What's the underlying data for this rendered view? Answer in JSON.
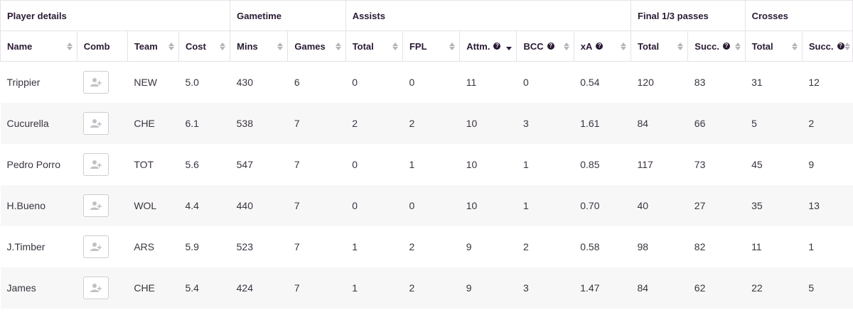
{
  "groups": {
    "player_details": "Player details",
    "gametime": "Gametime",
    "assists": "Assists",
    "final_third": "Final 1/3 passes",
    "crosses": "Crosses"
  },
  "columns": {
    "name": "Name",
    "comb": "Comb",
    "team": "Team",
    "cost": "Cost",
    "mins": "Mins",
    "games": "Games",
    "total": "Total",
    "fpl": "FPL",
    "attm": "Attm.",
    "bcc": "BCC",
    "xa": "xA",
    "f_total": "Total",
    "f_succ": "Succ.",
    "c_total": "Total",
    "c_succ": "Succ."
  },
  "icons": {
    "info": "?",
    "comb_button": "add-user-icon",
    "sort": "sort-arrows-icon"
  },
  "colors": {
    "row_alt": "#f7f7f7",
    "text": "#3b3340",
    "header_text": "#2a1a33"
  },
  "rows": [
    {
      "name": "Trippier",
      "team": "NEW",
      "cost": "5.0",
      "mins": "430",
      "games": "6",
      "total": "0",
      "fpl": "0",
      "attm": "11",
      "bcc": "0",
      "xa": "0.54",
      "f_total": "120",
      "f_succ": "83",
      "c_total": "31",
      "c_succ": "12"
    },
    {
      "name": "Cucurella",
      "team": "CHE",
      "cost": "6.1",
      "mins": "538",
      "games": "7",
      "total": "2",
      "fpl": "2",
      "attm": "10",
      "bcc": "3",
      "xa": "1.61",
      "f_total": "84",
      "f_succ": "66",
      "c_total": "5",
      "c_succ": "2"
    },
    {
      "name": "Pedro Porro",
      "team": "TOT",
      "cost": "5.6",
      "mins": "547",
      "games": "7",
      "total": "0",
      "fpl": "1",
      "attm": "10",
      "bcc": "1",
      "xa": "0.85",
      "f_total": "117",
      "f_succ": "73",
      "c_total": "45",
      "c_succ": "9"
    },
    {
      "name": "H.Bueno",
      "team": "WOL",
      "cost": "4.4",
      "mins": "440",
      "games": "7",
      "total": "0",
      "fpl": "0",
      "attm": "10",
      "bcc": "1",
      "xa": "0.70",
      "f_total": "40",
      "f_succ": "27",
      "c_total": "35",
      "c_succ": "13"
    },
    {
      "name": "J.Timber",
      "team": "ARS",
      "cost": "5.9",
      "mins": "523",
      "games": "7",
      "total": "1",
      "fpl": "2",
      "attm": "9",
      "bcc": "2",
      "xa": "0.58",
      "f_total": "98",
      "f_succ": "82",
      "c_total": "11",
      "c_succ": "1"
    },
    {
      "name": "James",
      "team": "CHE",
      "cost": "5.4",
      "mins": "424",
      "games": "7",
      "total": "1",
      "fpl": "2",
      "attm": "9",
      "bcc": "3",
      "xa": "1.47",
      "f_total": "84",
      "f_succ": "62",
      "c_total": "22",
      "c_succ": "5"
    }
  ]
}
